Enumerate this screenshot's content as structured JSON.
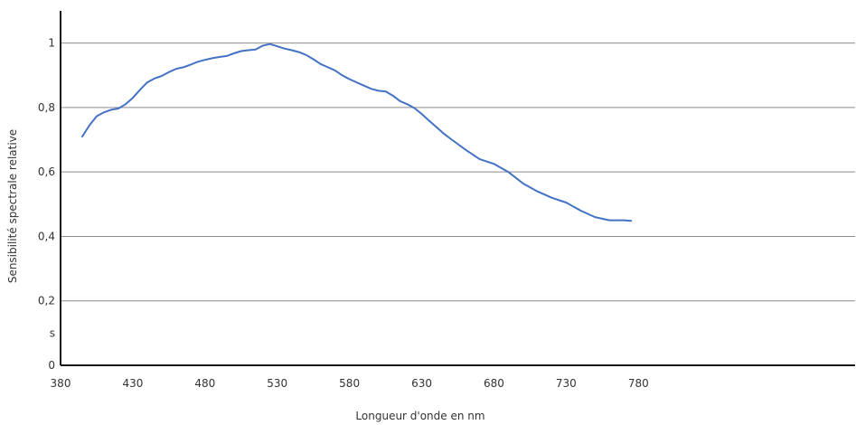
{
  "chart_data": {
    "type": "line",
    "title": "",
    "xlabel": "Longueur d'onde en nm",
    "ylabel": "Sensibilité spectrale relative",
    "xlim": [
      380,
      930
    ],
    "ylim": [
      0,
      1.1
    ],
    "grid": true,
    "line_color": "#4472c4",
    "grid_color": "#8c8c8c",
    "axis_color": "#1a1a1a",
    "x_ticks": [
      {
        "value": 380,
        "label": "380"
      },
      {
        "value": 430,
        "label": "430"
      },
      {
        "value": 480,
        "label": "480"
      },
      {
        "value": 530,
        "label": "530"
      },
      {
        "value": 580,
        "label": "580"
      },
      {
        "value": 630,
        "label": "630"
      },
      {
        "value": 680,
        "label": "680"
      },
      {
        "value": 730,
        "label": "730"
      },
      {
        "value": 780,
        "label": "780"
      }
    ],
    "y_ticks": [
      {
        "value": 0,
        "label": "0"
      },
      {
        "value": 0.1,
        "label": "s"
      },
      {
        "value": 0.2,
        "label": "0,2"
      },
      {
        "value": 0.4,
        "label": "0,4"
      },
      {
        "value": 0.6,
        "label": "0,6"
      },
      {
        "value": 0.8,
        "label": "0,8"
      },
      {
        "value": 1.0,
        "label": "1"
      }
    ],
    "grid_values": [
      0.2,
      0.4,
      0.6,
      0.8,
      1.0
    ],
    "series": [
      {
        "x": [
          395,
          400,
          405,
          410,
          415,
          420,
          425,
          430,
          435,
          440,
          445,
          450,
          455,
          460,
          465,
          470,
          475,
          480,
          485,
          490,
          495,
          500,
          505,
          510,
          515,
          520,
          525,
          530,
          535,
          540,
          545,
          550,
          555,
          560,
          565,
          570,
          575,
          580,
          585,
          590,
          595,
          600,
          605,
          610,
          615,
          620,
          625,
          630,
          635,
          640,
          645,
          650,
          660,
          670,
          680,
          690,
          700,
          710,
          720,
          730,
          740,
          750,
          760,
          770,
          775
        ],
        "y": [
          0.71,
          0.745,
          0.773,
          0.785,
          0.793,
          0.797,
          0.81,
          0.83,
          0.855,
          0.878,
          0.89,
          0.898,
          0.91,
          0.92,
          0.925,
          0.933,
          0.942,
          0.948,
          0.953,
          0.957,
          0.96,
          0.968,
          0.975,
          0.978,
          0.98,
          0.992,
          0.997,
          0.99,
          0.983,
          0.978,
          0.972,
          0.963,
          0.95,
          0.935,
          0.925,
          0.915,
          0.9,
          0.888,
          0.878,
          0.868,
          0.858,
          0.852,
          0.85,
          0.837,
          0.82,
          0.81,
          0.798,
          0.78,
          0.76,
          0.74,
          0.72,
          0.703,
          0.67,
          0.64,
          0.625,
          0.6,
          0.565,
          0.54,
          0.52,
          0.505,
          0.48,
          0.46,
          0.45,
          0.45,
          0.448
        ]
      }
    ]
  }
}
